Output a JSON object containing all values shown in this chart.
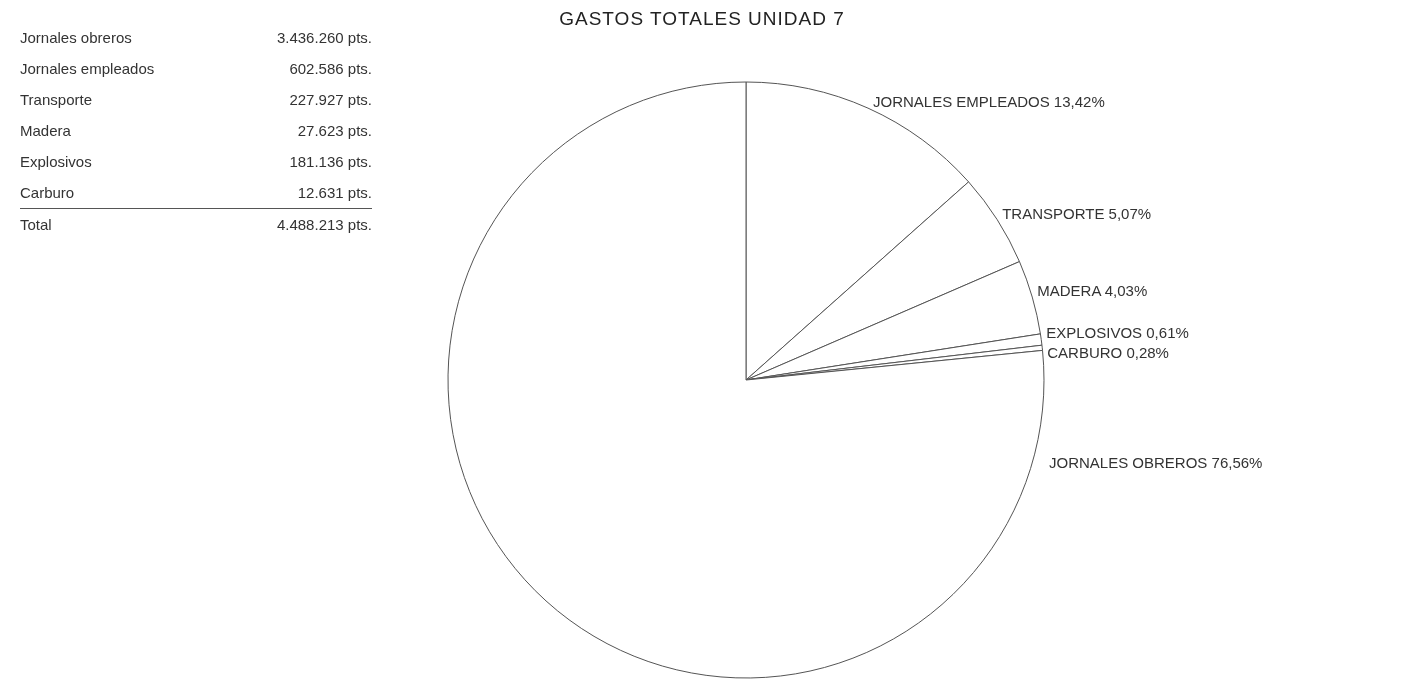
{
  "chart_data": [
    {
      "type": "other",
      "categories": [
        "Jornales obreros",
        "Jornales empleados",
        "Transporte",
        "Madera",
        "Explosivos",
        "Carburo",
        "Total"
      ],
      "value_labels": [
        "3.436.260 pts.",
        "602.586 pts.",
        "227.927 pts.",
        "27.623 pts.",
        "181.136 pts.",
        "12.631 pts.",
        "4.488.213 pts."
      ]
    },
    {
      "type": "pie",
      "title": "GASTOS TOTALES UNIDAD 7",
      "categories": [
        "JORNALES EMPLEADOS",
        "TRANSPORTE",
        "MADERA",
        "EXPLOSIVOS",
        "CARBURO",
        "JORNALES OBREROS"
      ],
      "values": [
        13.42,
        5.07,
        4.03,
        0.61,
        0.28,
        76.56
      ],
      "value_labels": [
        "13,42%",
        "5,07%",
        "4,03%",
        "0,61%",
        "0,28%",
        "76,56%"
      ],
      "colors": [
        "#ffffff",
        "#ffffff",
        "#ffffff",
        "#ffffff",
        "#ffffff",
        "#ffffff"
      ]
    }
  ]
}
